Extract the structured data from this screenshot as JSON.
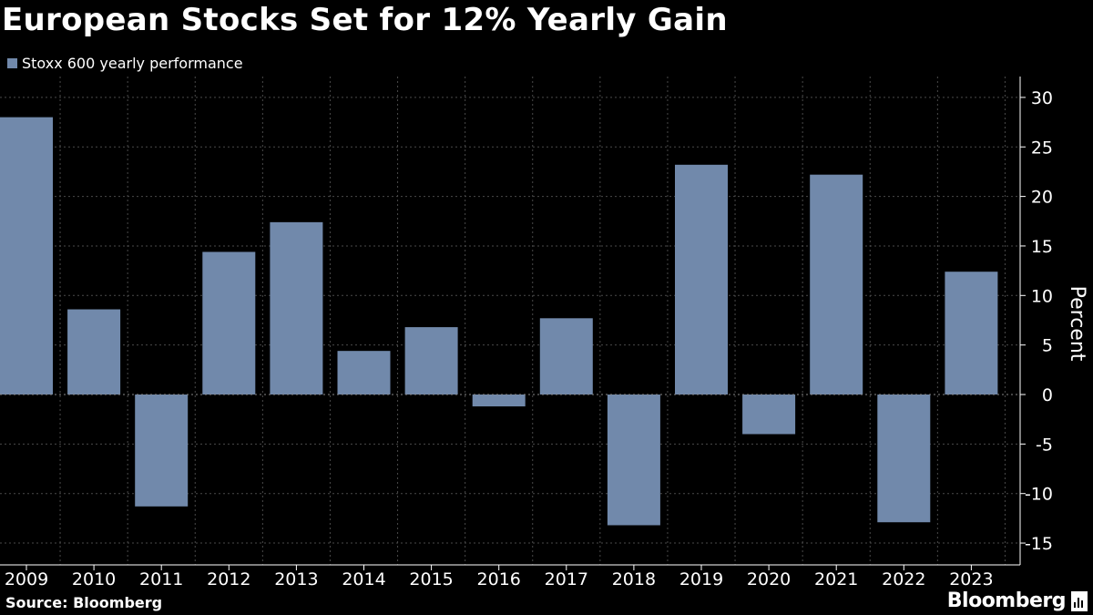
{
  "title": "European Stocks Set for 12% Yearly Gain",
  "legend": {
    "label": "Stoxx 600 yearly performance"
  },
  "source": "Source: Bloomberg",
  "brand": "Bloomberg",
  "colors": {
    "bar": "#7189ab",
    "background": "#000000",
    "grid": "#4a4a4a",
    "axis": "#ffffff"
  },
  "chart_data": {
    "type": "bar",
    "title": "European Stocks Set for 12% Yearly Gain",
    "xlabel": "",
    "ylabel": "Percent",
    "ylim": [
      -16,
      32
    ],
    "yticks": [
      30,
      25,
      20,
      15,
      10,
      5,
      0,
      -5,
      -10,
      -15
    ],
    "ytick_labels": [
      "30",
      "25",
      "20",
      "15",
      "10",
      "5",
      "0",
      "-5",
      "-10",
      "-15"
    ],
    "categories": [
      "2009",
      "2010",
      "2011",
      "2012",
      "2013",
      "2014",
      "2015",
      "2016",
      "2017",
      "2018",
      "2019",
      "2020",
      "2021",
      "2022",
      "2023"
    ],
    "series": [
      {
        "name": "Stoxx 600 yearly performance",
        "values": [
          28.0,
          8.6,
          -11.3,
          14.4,
          17.4,
          4.4,
          6.8,
          -1.2,
          7.7,
          -13.2,
          23.2,
          -4.0,
          22.2,
          -12.9,
          12.4
        ]
      }
    ],
    "grid": true,
    "legend_position": "top-left"
  }
}
